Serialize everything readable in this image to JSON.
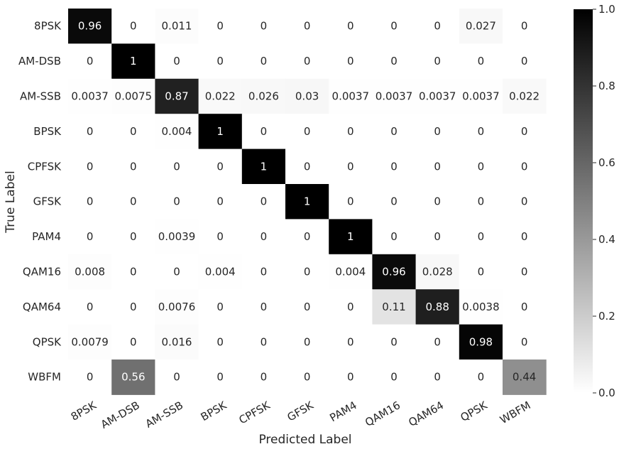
{
  "chart_data": {
    "type": "heatmap",
    "title": "",
    "xlabel": "Predicted Label",
    "ylabel": "True Label",
    "x_categories": [
      "8PSK",
      "AM-DSB",
      "AM-SSB",
      "BPSK",
      "CPFSK",
      "GFSK",
      "PAM4",
      "QAM16",
      "QAM64",
      "QPSK",
      "WBFM"
    ],
    "y_categories": [
      "8PSK",
      "AM-DSB",
      "AM-SSB",
      "BPSK",
      "CPFSK",
      "GFSK",
      "PAM4",
      "QAM16",
      "QAM64",
      "QPSK",
      "WBFM"
    ],
    "values": [
      [
        0.96,
        0,
        0.011,
        0,
        0,
        0,
        0,
        0,
        0,
        0.027,
        0
      ],
      [
        0,
        1,
        0,
        0,
        0,
        0,
        0,
        0,
        0,
        0,
        0
      ],
      [
        0.0037,
        0.0075,
        0.87,
        0.022,
        0.026,
        0.03,
        0.0037,
        0.0037,
        0.0037,
        0.0037,
        0.022
      ],
      [
        0,
        0,
        0.004,
        1,
        0,
        0,
        0,
        0,
        0,
        0,
        0
      ],
      [
        0,
        0,
        0,
        0,
        1,
        0,
        0,
        0,
        0,
        0,
        0
      ],
      [
        0,
        0,
        0,
        0,
        0,
        1,
        0,
        0,
        0,
        0,
        0
      ],
      [
        0,
        0,
        0.0039,
        0,
        0,
        0,
        1,
        0,
        0,
        0,
        0
      ],
      [
        0.008,
        0,
        0,
        0.004,
        0,
        0,
        0.004,
        0.96,
        0.028,
        0,
        0
      ],
      [
        0,
        0,
        0.0076,
        0,
        0,
        0,
        0,
        0.11,
        0.88,
        0.0038,
        0
      ],
      [
        0.0079,
        0,
        0.016,
        0,
        0,
        0,
        0,
        0,
        0,
        0.98,
        0
      ],
      [
        0,
        0.56,
        0,
        0,
        0,
        0,
        0,
        0,
        0,
        0,
        0.44
      ]
    ],
    "cell_labels": [
      [
        "0.96",
        "0",
        "0.011",
        "0",
        "0",
        "0",
        "0",
        "0",
        "0",
        "0.027",
        "0"
      ],
      [
        "0",
        "1",
        "0",
        "0",
        "0",
        "0",
        "0",
        "0",
        "0",
        "0",
        "0"
      ],
      [
        "0.0037",
        "0.0075",
        "0.87",
        "0.022",
        "0.026",
        "0.03",
        "0.0037",
        "0.0037",
        "0.0037",
        "0.0037",
        "0.022"
      ],
      [
        "0",
        "0",
        "0.004",
        "1",
        "0",
        "0",
        "0",
        "0",
        "0",
        "0",
        "0"
      ],
      [
        "0",
        "0",
        "0",
        "0",
        "1",
        "0",
        "0",
        "0",
        "0",
        "0",
        "0"
      ],
      [
        "0",
        "0",
        "0",
        "0",
        "0",
        "1",
        "0",
        "0",
        "0",
        "0",
        "0"
      ],
      [
        "0",
        "0",
        "0.0039",
        "0",
        "0",
        "0",
        "1",
        "0",
        "0",
        "0",
        "0"
      ],
      [
        "0.008",
        "0",
        "0",
        "0.004",
        "0",
        "0",
        "0.004",
        "0.96",
        "0.028",
        "0",
        "0"
      ],
      [
        "0",
        "0",
        "0.0076",
        "0",
        "0",
        "0",
        "0",
        "0.11",
        "0.88",
        "0.0038",
        "0"
      ],
      [
        "0.0079",
        "0",
        "0.016",
        "0",
        "0",
        "0",
        "0",
        "0",
        "0",
        "0.98",
        "0"
      ],
      [
        "0",
        "0.56",
        "0",
        "0",
        "0",
        "0",
        "0",
        "0",
        "0",
        "0",
        "0.44"
      ]
    ],
    "colorbar": {
      "range": [
        0.0,
        1.0
      ],
      "ticks": [
        "0.0",
        "0.2",
        "0.4",
        "0.6",
        "0.8",
        "1.0"
      ],
      "colormap": "white-to-black"
    },
    "grid": false
  }
}
